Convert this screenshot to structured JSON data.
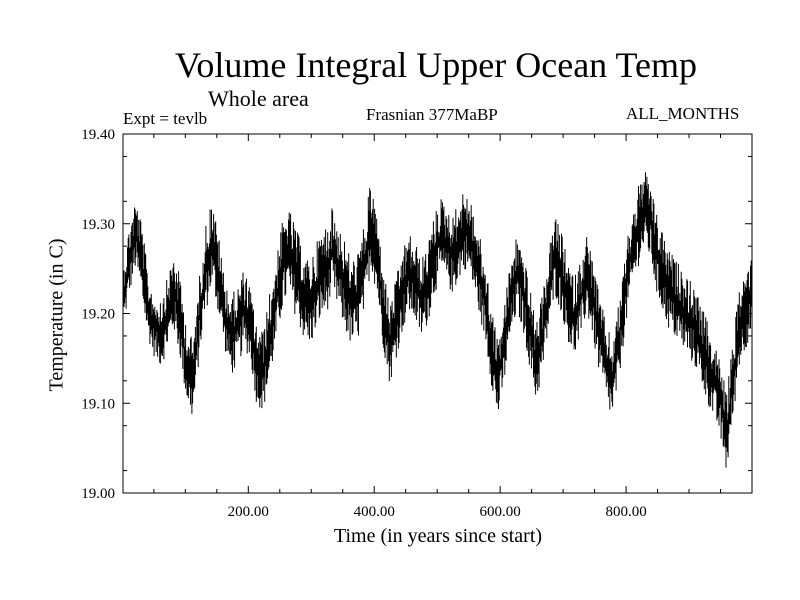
{
  "chart_data": {
    "type": "line",
    "title": "Volume Integral Upper Ocean Temp",
    "subtitle": "Whole area",
    "annotations": {
      "left": "Expt = tevlb",
      "center": "Frasnian 377MaBP",
      "right": "ALL_MONTHS"
    },
    "xlabel": "Time (in years since start)",
    "ylabel": "Temperature (in C)",
    "xlim": [
      1,
      1000
    ],
    "ylim": [
      19.0,
      19.4
    ],
    "xticks": [
      {
        "value": 200,
        "label": "200.00"
      },
      {
        "value": 400,
        "label": "400.00"
      },
      {
        "value": 600,
        "label": "600.00"
      },
      {
        "value": 800,
        "label": "800.00"
      }
    ],
    "yticks": [
      {
        "value": 19.0,
        "label": "19.00"
      },
      {
        "value": 19.1,
        "label": "19.10"
      },
      {
        "value": 19.2,
        "label": "19.20"
      },
      {
        "value": 19.3,
        "label": "19.30"
      },
      {
        "value": 19.4,
        "label": "19.40"
      }
    ],
    "grid": false,
    "series": [
      {
        "name": "Volume integral upper ocean temperature",
        "color": "#000000",
        "band_min": [
          19.18,
          19.22,
          19.25,
          19.21,
          19.17,
          19.15,
          19.14,
          19.16,
          19.18,
          19.15,
          19.1,
          19.08,
          19.15,
          19.2,
          19.23,
          19.2,
          19.16,
          19.13,
          19.14,
          19.16,
          19.15,
          19.1,
          19.09,
          19.12,
          19.16,
          19.2,
          19.22,
          19.2,
          19.18,
          19.16,
          19.17,
          19.19,
          19.2,
          19.22,
          19.2,
          19.18,
          19.16,
          19.17,
          19.2,
          19.25,
          19.22,
          19.16,
          19.12,
          19.15,
          19.18,
          19.2,
          19.19,
          19.17,
          19.19,
          19.22,
          19.24,
          19.23,
          19.22,
          19.24,
          19.25,
          19.23,
          19.2,
          19.17,
          19.12,
          19.08,
          19.12,
          19.17,
          19.2,
          19.18,
          19.14,
          19.1,
          19.13,
          19.18,
          19.22,
          19.2,
          19.17,
          19.15,
          19.17,
          19.2,
          19.17,
          19.13,
          19.1,
          19.08,
          19.12,
          19.18,
          19.22,
          19.25,
          19.27,
          19.26,
          19.22,
          19.2,
          19.18,
          19.17,
          19.16,
          19.15,
          19.14,
          19.12,
          19.1,
          19.08,
          19.06,
          19.02,
          19.08,
          19.14,
          19.16,
          19.18
        ],
        "band_max": [
          19.25,
          19.3,
          19.33,
          19.3,
          19.24,
          19.22,
          19.22,
          19.24,
          19.27,
          19.24,
          19.19,
          19.17,
          19.24,
          19.3,
          19.33,
          19.29,
          19.24,
          19.22,
          19.23,
          19.25,
          19.23,
          19.19,
          19.18,
          19.22,
          19.26,
          19.3,
          19.32,
          19.3,
          19.28,
          19.26,
          19.27,
          19.29,
          19.3,
          19.32,
          19.3,
          19.28,
          19.26,
          19.27,
          19.3,
          19.35,
          19.31,
          19.25,
          19.21,
          19.24,
          19.27,
          19.29,
          19.28,
          19.26,
          19.28,
          19.31,
          19.33,
          19.32,
          19.31,
          19.33,
          19.34,
          19.32,
          19.29,
          19.26,
          19.21,
          19.17,
          19.21,
          19.26,
          19.29,
          19.27,
          19.23,
          19.19,
          19.22,
          19.27,
          19.31,
          19.29,
          19.26,
          19.24,
          19.26,
          19.29,
          19.26,
          19.22,
          19.19,
          19.17,
          19.21,
          19.27,
          19.31,
          19.34,
          19.36,
          19.35,
          19.31,
          19.29,
          19.27,
          19.26,
          19.25,
          19.24,
          19.23,
          19.21,
          19.19,
          19.17,
          19.15,
          19.11,
          19.17,
          19.23,
          19.25,
          19.27
        ]
      }
    ]
  }
}
